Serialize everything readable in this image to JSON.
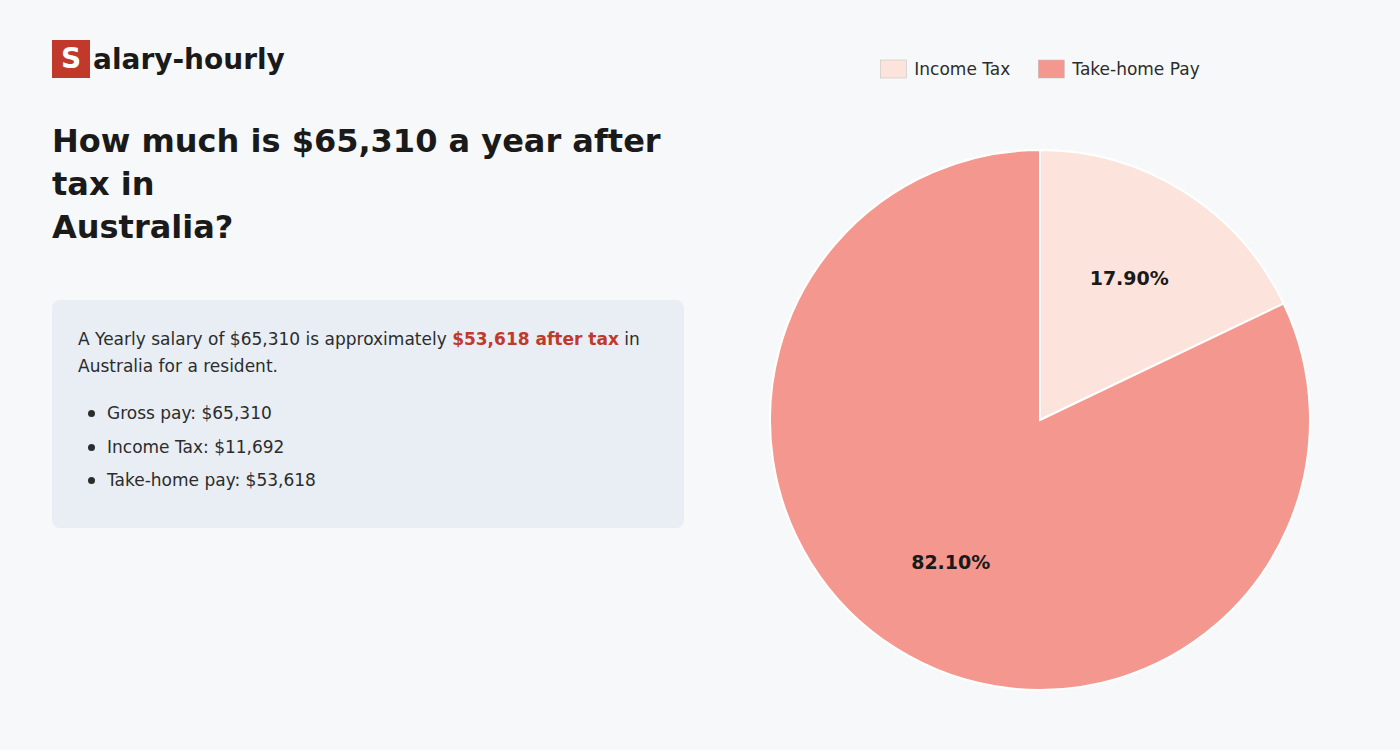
{
  "chart_data": {
    "type": "pie",
    "title": "How much is $65,310 a year after tax in\nAustralia?",
    "categories": [
      "Income Tax",
      "Take-home Pay"
    ],
    "values": [
      17.9,
      82.1
    ],
    "value_labels": [
      "17.90%",
      "82.10%"
    ],
    "colors": [
      "#fce4dc",
      "#f4978e"
    ],
    "data_labels": true,
    "legend": "top",
    "annotations": [
      [
        "S",
        "alary-hourly"
      ],
      [
        "A Yearly salary of $65,310 is approximately ",
        "$53,618 after tax",
        " in"
      ],
      [
        "Australia for a resident."
      ],
      [
        "Gross pay: $65,310"
      ],
      [
        "Income Tax: $11,692"
      ],
      [
        "Take-home pay: $53,618"
      ]
    ]
  }
}
